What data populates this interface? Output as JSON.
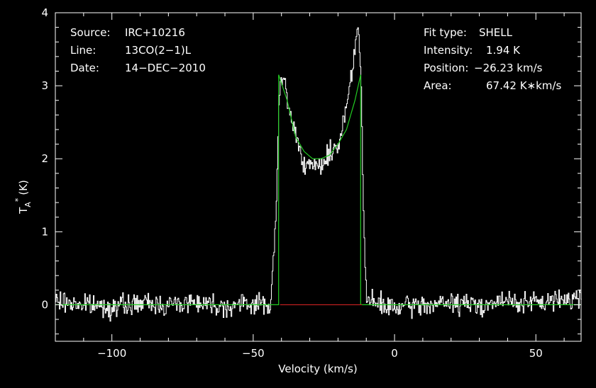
{
  "chart_data": {
    "type": "line",
    "title": "",
    "xlabel": "Velocity (km/s)",
    "ylabel": "T",
    "ylabel_sub": "A",
    "ylabel_sup": "*",
    "ylabel_unit": "(K)",
    "xlim": [
      -120,
      66
    ],
    "ylim": [
      -0.5,
      4
    ],
    "x_ticks": [
      -100,
      -50,
      0,
      50
    ],
    "x_tick_labels": [
      "−100",
      "−50",
      "0",
      "50"
    ],
    "y_ticks": [
      0,
      1,
      2,
      3,
      4
    ],
    "y_tick_labels": [
      "0",
      "1",
      "2",
      "3",
      "4"
    ],
    "grid": false,
    "colors": {
      "background": "#000000",
      "axes": "#ffffff",
      "spectrum": "#ffffff",
      "fit": "#22cc22",
      "baseline": "#cc2222"
    },
    "series": [
      {
        "role": "spectrum",
        "x": [
          -120,
          -110,
          -100,
          -90,
          -80,
          -70,
          -60,
          -50,
          -44,
          -42,
          -41,
          -40,
          -39,
          -38,
          -36,
          -34,
          -32,
          -30,
          -28,
          -26,
          -24,
          -22,
          -20,
          -18,
          -16,
          -15,
          -14,
          -13,
          -12,
          -11,
          -10,
          0,
          10,
          20,
          30,
          40,
          50,
          60,
          66
        ],
        "y": [
          0.05,
          0.0,
          -0.03,
          0.02,
          0.0,
          0.05,
          -0.02,
          0.02,
          0.0,
          1.2,
          2.85,
          3.05,
          3.1,
          2.75,
          2.45,
          2.2,
          1.95,
          1.85,
          1.9,
          1.9,
          2.05,
          2.1,
          2.2,
          2.55,
          3.0,
          3.3,
          3.6,
          3.82,
          3.1,
          1.1,
          0.05,
          -0.05,
          0.0,
          0.02,
          0.0,
          0.05,
          0.02,
          0.08,
          0.1
        ]
      },
      {
        "role": "fit",
        "model": "shell",
        "x": [
          -120,
          -41,
          -41,
          -38,
          -35,
          -32,
          -29,
          -26,
          -23,
          -20,
          -17,
          -14,
          -12,
          -12,
          66
        ],
        "y": [
          0,
          0,
          3.15,
          2.8,
          2.3,
          2.1,
          2.0,
          2.0,
          2.05,
          2.2,
          2.4,
          2.8,
          3.15,
          0,
          0
        ]
      },
      {
        "role": "baseline-window",
        "x": [
          -40.5,
          -11.5
        ],
        "y": [
          0,
          0
        ]
      }
    ]
  },
  "info_left": [
    {
      "label": "Source:",
      "value": "IRC+10216"
    },
    {
      "label": "Line:",
      "value": "13CO(2−1)L"
    },
    {
      "label": "Date:",
      "value": "14−DEC−2010"
    }
  ],
  "info_right": [
    {
      "label": "Fit type:",
      "value": "SHELL"
    },
    {
      "label": "Intensity:",
      "value": "1.94 K"
    },
    {
      "label": "Position:",
      "value": "−26.23 km/s"
    },
    {
      "label": "Area:",
      "value": "67.42 K∗km/s"
    }
  ]
}
